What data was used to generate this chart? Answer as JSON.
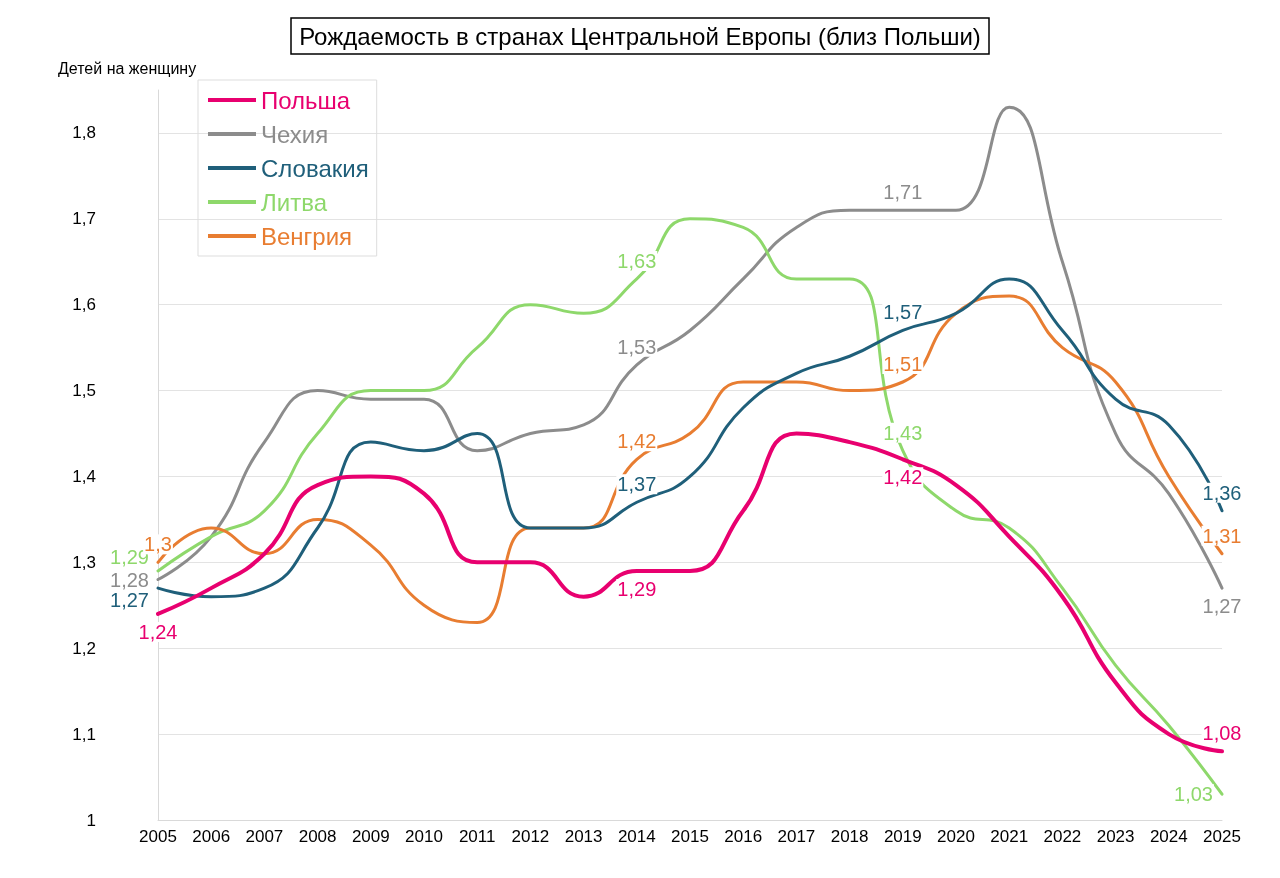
{
  "chart_data": {
    "type": "line",
    "title": "Рождаемость в странах Центральной Европы (близ Польши)",
    "ylabel": "Детей на женщину",
    "categories": [
      "2005",
      "2006",
      "2007",
      "2008",
      "2009",
      "2010",
      "2011",
      "2012",
      "2013",
      "2014",
      "2015",
      "2016",
      "2017",
      "2018",
      "2019",
      "2020",
      "2021",
      "2022",
      "2023",
      "2024",
      "2025"
    ],
    "ylim": [
      1,
      1.85
    ],
    "yticks": [
      1,
      {
        "value": 1.1,
        "label": "1,1"
      },
      {
        "value": 1.2,
        "label": "1,2"
      },
      {
        "value": 1.3,
        "label": "1,3"
      },
      {
        "value": 1.4,
        "label": "1,4"
      },
      {
        "value": 1.5,
        "label": "1,5"
      },
      {
        "value": 1.6,
        "label": "1,6"
      },
      {
        "value": 1.7,
        "label": "1,7"
      },
      {
        "value": 1.8,
        "label": "1,8"
      }
    ],
    "grid": "y",
    "legend": "top left",
    "marker": "none",
    "line_style": "solid",
    "series": [
      {
        "name": "Польша",
        "color": "#e8006f",
        "values": [
          1.24,
          1.27,
          1.31,
          1.39,
          1.4,
          1.38,
          1.3,
          1.3,
          1.26,
          1.29,
          1.29,
          1.36,
          1.45,
          1.44,
          1.42,
          1.39,
          1.33,
          1.26,
          1.16,
          1.1,
          1.08
        ],
        "value_labels": [
          "1,24",
          null,
          null,
          null,
          null,
          null,
          null,
          null,
          null,
          "1,29",
          null,
          null,
          null,
          null,
          "1,42",
          null,
          null,
          null,
          null,
          null,
          "1,08"
        ]
      },
      {
        "name": "Чехия",
        "color": "#8c8c8c",
        "values": [
          1.28,
          1.33,
          1.44,
          1.5,
          1.49,
          1.49,
          1.43,
          1.45,
          1.46,
          1.53,
          1.57,
          1.63,
          1.69,
          1.71,
          1.71,
          1.71,
          1.83,
          1.65,
          1.45,
          1.38,
          1.27
        ],
        "value_labels": [
          "1,28",
          null,
          null,
          null,
          null,
          null,
          null,
          null,
          null,
          "1,53",
          null,
          null,
          null,
          null,
          "1,71",
          null,
          null,
          null,
          null,
          null,
          "1,27"
        ]
      },
      {
        "name": "Словакия",
        "color": "#1f5f7a",
        "values": [
          1.27,
          1.26,
          1.27,
          1.34,
          1.44,
          1.43,
          1.45,
          1.34,
          1.34,
          1.37,
          1.4,
          1.48,
          1.52,
          1.54,
          1.57,
          1.59,
          1.63,
          1.57,
          1.49,
          1.46,
          1.36
        ],
        "value_labels": [
          "1,27",
          null,
          null,
          null,
          null,
          null,
          null,
          null,
          null,
          "1,37",
          null,
          null,
          null,
          null,
          "1,57",
          null,
          null,
          null,
          null,
          null,
          "1,36"
        ]
      },
      {
        "name": "Литва",
        "color": "#8ed86b",
        "values": [
          1.29,
          1.33,
          1.36,
          1.45,
          1.5,
          1.5,
          1.55,
          1.6,
          1.59,
          1.63,
          1.7,
          1.69,
          1.63,
          1.63,
          1.43,
          1.36,
          1.34,
          1.27,
          1.18,
          1.11,
          1.03
        ],
        "value_labels": [
          "1,29",
          null,
          null,
          null,
          null,
          null,
          null,
          null,
          null,
          "1,63",
          null,
          null,
          null,
          null,
          "1,43",
          null,
          null,
          null,
          null,
          null,
          "1,03"
        ]
      },
      {
        "name": "Венгрия",
        "color": "#e87d31",
        "values": [
          1.3,
          1.34,
          1.31,
          1.35,
          1.32,
          1.25,
          1.23,
          1.34,
          1.34,
          1.42,
          1.45,
          1.51,
          1.51,
          1.5,
          1.51,
          1.59,
          1.61,
          1.55,
          1.51,
          1.4,
          1.31
        ],
        "value_labels": [
          "1,3",
          null,
          null,
          null,
          null,
          null,
          null,
          null,
          null,
          "1,42",
          null,
          null,
          null,
          null,
          "1,51",
          null,
          null,
          null,
          null,
          null,
          "1,31"
        ]
      }
    ]
  }
}
